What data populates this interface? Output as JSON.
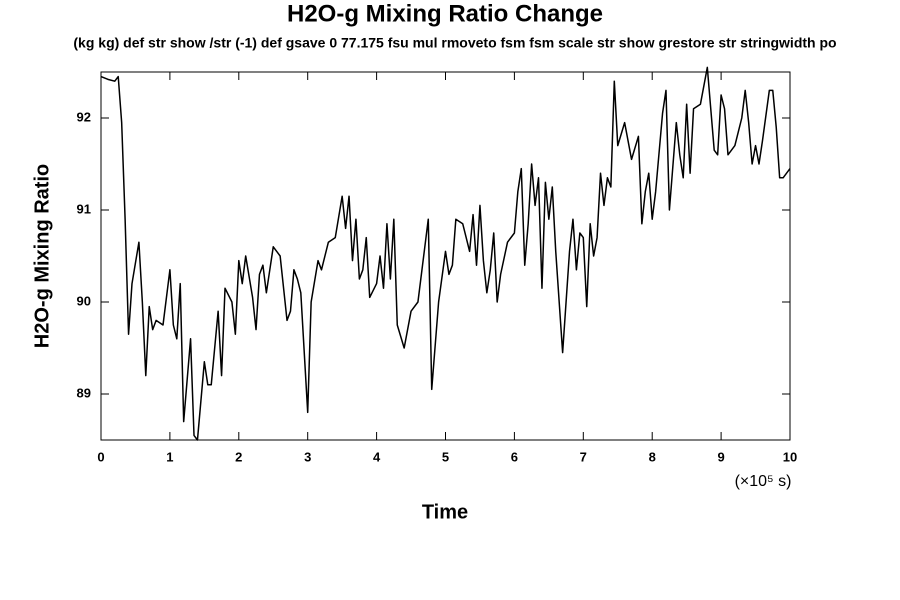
{
  "chart_data": {
    "type": "line",
    "title": "H2O-g Mixing Ratio Change",
    "subtitle": "(kg kg) def str show /str (-1) def gsave 0 77.175 fsu mul rmoveto fsm fsm scale str show grestore str stringwidth po",
    "x_label": "Time",
    "x_unit": "(×10⁵ s)",
    "y_label": "H2O-g Mixing Ratio",
    "xlim": [
      0,
      10
    ],
    "ylim": [
      88.5,
      92.5
    ],
    "xticks": [
      0,
      1,
      2,
      3,
      4,
      5,
      6,
      7,
      8,
      9,
      10
    ],
    "yticks": [
      89,
      90,
      91,
      92
    ],
    "color": "#000000",
    "x": [
      0,
      0.1,
      0.2,
      0.25,
      0.3,
      0.35,
      0.4,
      0.45,
      0.55,
      0.6,
      0.65,
      0.7,
      0.75,
      0.8,
      0.9,
      1.0,
      1.05,
      1.1,
      1.15,
      1.2,
      1.3,
      1.35,
      1.4,
      1.5,
      1.55,
      1.6,
      1.7,
      1.75,
      1.8,
      1.9,
      1.95,
      2.0,
      2.05,
      2.1,
      2.2,
      2.25,
      2.3,
      2.35,
      2.4,
      2.5,
      2.6,
      2.7,
      2.75,
      2.8,
      2.85,
      2.9,
      3.0,
      3.05,
      3.15,
      3.2,
      3.3,
      3.4,
      3.5,
      3.55,
      3.6,
      3.65,
      3.7,
      3.75,
      3.8,
      3.85,
      3.9,
      4.0,
      4.05,
      4.1,
      4.15,
      4.2,
      4.25,
      4.3,
      4.4,
      4.5,
      4.6,
      4.7,
      4.75,
      4.8,
      4.9,
      5.0,
      5.05,
      5.1,
      5.15,
      5.25,
      5.3,
      5.35,
      5.4,
      5.45,
      5.5,
      5.55,
      5.6,
      5.65,
      5.7,
      5.75,
      5.8,
      5.9,
      6.0,
      6.05,
      6.1,
      6.15,
      6.2,
      6.25,
      6.3,
      6.35,
      6.4,
      6.45,
      6.5,
      6.55,
      6.6,
      6.7,
      6.8,
      6.85,
      6.9,
      6.95,
      7.0,
      7.05,
      7.1,
      7.15,
      7.2,
      7.25,
      7.3,
      7.35,
      7.4,
      7.45,
      7.5,
      7.6,
      7.7,
      7.8,
      7.85,
      7.9,
      7.95,
      8.0,
      8.05,
      8.15,
      8.2,
      8.25,
      8.35,
      8.4,
      8.45,
      8.5,
      8.55,
      8.6,
      8.7,
      8.8,
      8.85,
      8.9,
      8.95,
      9.0,
      9.05,
      9.1,
      9.2,
      9.3,
      9.35,
      9.4,
      9.45,
      9.5,
      9.55,
      9.6,
      9.7,
      9.75,
      9.8,
      9.85,
      9.9,
      10.0
    ],
    "values": [
      92.45,
      92.42,
      92.4,
      92.45,
      91.95,
      90.9,
      89.65,
      90.2,
      90.65,
      90.0,
      89.2,
      89.95,
      89.7,
      89.8,
      89.75,
      90.35,
      89.75,
      89.6,
      90.2,
      88.7,
      89.6,
      88.55,
      88.5,
      89.35,
      89.1,
      89.1,
      89.9,
      89.2,
      90.15,
      90.0,
      89.65,
      90.45,
      90.2,
      90.5,
      90.05,
      89.7,
      90.3,
      90.4,
      90.1,
      90.6,
      90.5,
      89.8,
      89.9,
      90.35,
      90.25,
      90.1,
      88.8,
      90.0,
      90.45,
      90.35,
      90.65,
      90.7,
      91.15,
      90.8,
      91.15,
      90.45,
      90.9,
      90.25,
      90.35,
      90.7,
      90.05,
      90.2,
      90.5,
      90.15,
      90.85,
      90.25,
      90.9,
      89.75,
      89.5,
      89.9,
      90.0,
      90.6,
      90.9,
      89.05,
      90.0,
      90.55,
      90.3,
      90.4,
      90.9,
      90.85,
      90.7,
      90.55,
      90.95,
      90.4,
      91.05,
      90.45,
      90.1,
      90.35,
      90.75,
      90.0,
      90.3,
      90.65,
      90.75,
      91.2,
      91.45,
      90.4,
      90.85,
      91.5,
      91.05,
      91.35,
      90.15,
      91.3,
      90.9,
      91.25,
      90.55,
      89.45,
      90.55,
      90.9,
      90.35,
      90.75,
      90.7,
      89.95,
      90.85,
      90.5,
      90.7,
      91.4,
      91.05,
      91.35,
      91.25,
      92.4,
      91.7,
      91.95,
      91.55,
      91.8,
      90.85,
      91.2,
      91.4,
      90.9,
      91.2,
      92.05,
      92.3,
      91.0,
      91.95,
      91.6,
      91.35,
      92.15,
      91.4,
      92.1,
      92.15,
      92.55,
      92.1,
      91.65,
      91.6,
      92.25,
      92.1,
      91.6,
      91.7,
      92.0,
      92.3,
      91.95,
      91.5,
      91.7,
      91.5,
      91.75,
      92.3,
      92.3,
      91.9,
      91.35,
      91.35,
      91.45
    ]
  }
}
